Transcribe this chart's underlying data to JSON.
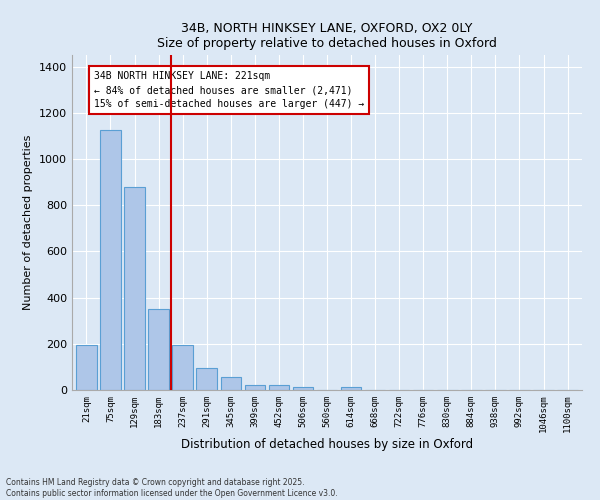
{
  "title_line1": "34B, NORTH HINKSEY LANE, OXFORD, OX2 0LY",
  "title_line2": "Size of property relative to detached houses in Oxford",
  "xlabel": "Distribution of detached houses by size in Oxford",
  "ylabel": "Number of detached properties",
  "categories": [
    "21sqm",
    "75sqm",
    "129sqm",
    "183sqm",
    "237sqm",
    "291sqm",
    "345sqm",
    "399sqm",
    "452sqm",
    "506sqm",
    "560sqm",
    "614sqm",
    "668sqm",
    "722sqm",
    "776sqm",
    "830sqm",
    "884sqm",
    "938sqm",
    "992sqm",
    "1046sqm",
    "1100sqm"
  ],
  "values": [
    195,
    1125,
    880,
    350,
    195,
    95,
    58,
    22,
    20,
    15,
    0,
    12,
    0,
    0,
    0,
    0,
    0,
    0,
    0,
    0,
    0
  ],
  "bar_color": "#aec6e8",
  "bar_edge_color": "#5a9fd4",
  "vline_color": "#cc0000",
  "annotation_text": "34B NORTH HINKSEY LANE: 221sqm\n← 84% of detached houses are smaller (2,471)\n15% of semi-detached houses are larger (447) →",
  "annotation_box_color": "#cc0000",
  "annotation_bg": "#ffffff",
  "ylim": [
    0,
    1450
  ],
  "yticks": [
    0,
    200,
    400,
    600,
    800,
    1000,
    1200,
    1400
  ],
  "footer_line1": "Contains HM Land Registry data © Crown copyright and database right 2025.",
  "footer_line2": "Contains public sector information licensed under the Open Government Licence v3.0.",
  "bg_color": "#dce8f5",
  "plot_bg_color": "#dce8f5"
}
